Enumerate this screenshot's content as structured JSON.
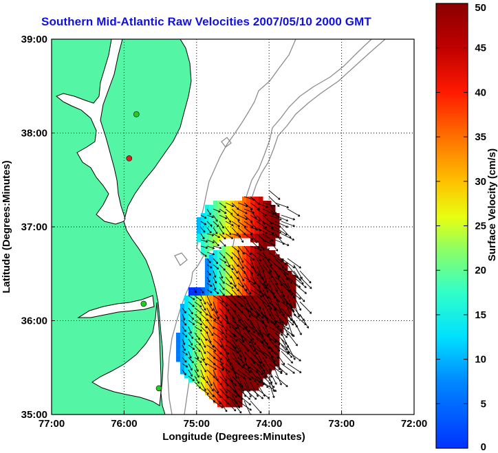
{
  "title": "Southern Mid-Atlantic Raw Velocities 2007/05/10 2000 GMT",
  "map": {
    "xlabel": "Longitude (Degrees:Minutes)",
    "ylabel": "Latitude (Degrees:Minutes)",
    "lon_ticks": [
      "77:00",
      "76:00",
      "75:00",
      "74:00",
      "73:00",
      "72:00"
    ],
    "lat_ticks": [
      "39:00",
      "38:00",
      "37:00",
      "36:00",
      "35:00"
    ],
    "lon_range": [
      -77,
      -72
    ],
    "lat_range": [
      35,
      39
    ],
    "grid": "dotted",
    "land_color": "#55f5a6",
    "water_color": "#ffffff",
    "coast_color": "#000000",
    "bathymetry_color": "#8c8c8c",
    "stations": [
      {
        "lon": -75.83,
        "lat": 38.2,
        "color": "#22cc22"
      },
      {
        "lon": -75.93,
        "lat": 37.73,
        "color": "#dd2222"
      },
      {
        "lon": -75.73,
        "lat": 36.18,
        "color": "#22cc22"
      },
      {
        "lon": -75.52,
        "lat": 35.28,
        "color": "#22cc22"
      }
    ]
  },
  "colorbar": {
    "label": "Surface Velocity (cm/s)",
    "ticks": [
      "0",
      "5",
      "10",
      "15",
      "20",
      "25",
      "30",
      "35",
      "40",
      "45",
      "50"
    ],
    "min": 0,
    "max": 50,
    "colormap": "jet"
  }
}
